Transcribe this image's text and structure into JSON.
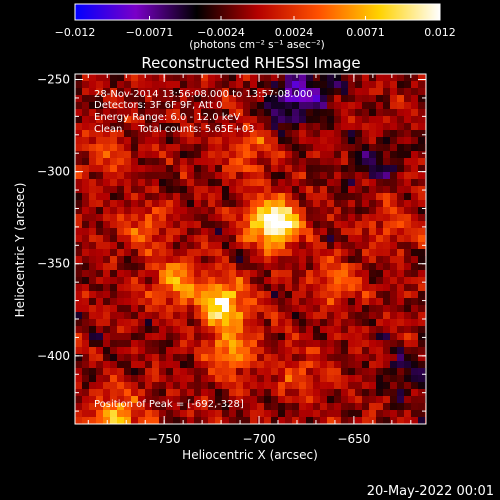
{
  "chart_data": {
    "type": "heatmap",
    "title": "Reconstructed RHESSI Image",
    "xlabel": "Heliocentric X (arcsec)",
    "ylabel": "Heliocentric Y (arcsec)",
    "xlim": [
      -797,
      -612
    ],
    "ylim": [
      -437,
      -247
    ],
    "x_ticks": [
      -750,
      -700,
      -650
    ],
    "y_ticks": [
      -250,
      -300,
      -350,
      -400
    ],
    "x_tick_labels": [
      "−750",
      "−700",
      "−650"
    ],
    "y_tick_labels": [
      "−250",
      "−300",
      "−350",
      "−400"
    ],
    "colorbar": {
      "min": -0.012,
      "max": 0.012,
      "tick_labels": [
        "−0.012",
        "−0.0071",
        "−0.0024",
        "0.0024",
        "0.0071",
        "0.012"
      ],
      "unit_label": "(photons cm⁻² s⁻¹ asec⁻²)",
      "colors": [
        "#0000ff",
        "#7a00c8",
        "#000000",
        "#b40000",
        "#ff5000",
        "#ffd200",
        "#ffffff"
      ]
    },
    "annotations": [
      "28-Nov-2014 13:56:08.000 to 13:57:08.000",
      "Detectors: 3F 6F 9F, Att 0",
      "Energy Range: 6.0 - 12.0 keV",
      "Clean     Total counts: 5.65E+03"
    ],
    "peak_label": "Position of Peak = [-692,-328]",
    "peak": {
      "x": -692,
      "y": -328
    },
    "sources": [
      {
        "x": -692,
        "y": -328,
        "value": 0.012
      },
      {
        "x": -719,
        "y": -372,
        "value": 0.009
      },
      {
        "x": -715,
        "y": -398,
        "value": 0.0062
      },
      {
        "x": -745,
        "y": -360,
        "value": 0.0055
      },
      {
        "x": -775,
        "y": -435,
        "value": 0.0075
      },
      {
        "x": -705,
        "y": -290,
        "value": 0.004
      },
      {
        "x": -760,
        "y": -330,
        "value": 0.0035
      },
      {
        "x": -660,
        "y": -360,
        "value": 0.0038
      },
      {
        "x": -630,
        "y": -330,
        "value": 0.003
      },
      {
        "x": -680,
        "y": -410,
        "value": 0.003
      },
      {
        "x": -780,
        "y": -290,
        "value": 0.0032
      }
    ],
    "negative_regions": [
      {
        "x": -685,
        "y": -262,
        "value": -0.006
      },
      {
        "x": -670,
        "y": -255,
        "value": -0.005
      },
      {
        "x": -640,
        "y": -295,
        "value": -0.004
      },
      {
        "x": -620,
        "y": -410,
        "value": -0.0035
      }
    ]
  },
  "footer": {
    "date": "20-May-2022 00:01"
  }
}
